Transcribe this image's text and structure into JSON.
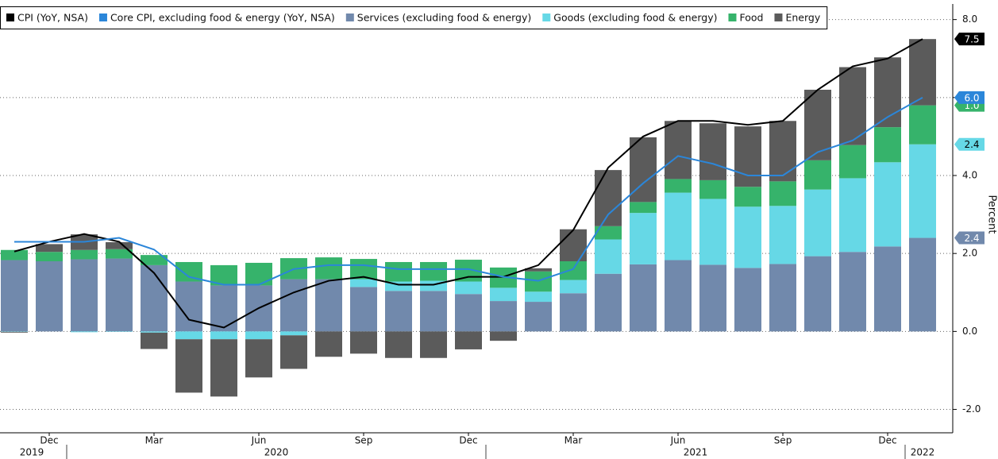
{
  "chart_data": {
    "type": "bar",
    "categories": [
      null,
      "Dec",
      null,
      null,
      "Mar",
      null,
      null,
      "Jun",
      null,
      null,
      "Sep",
      null,
      null,
      "Dec",
      null,
      null,
      "Mar",
      null,
      null,
      "Jun",
      null,
      null,
      "Sep",
      null,
      null,
      "Dec",
      null
    ],
    "year_groups": [
      {
        "label": "2019",
        "count": 2
      },
      {
        "label": "2020",
        "count": 12
      },
      {
        "label": "2021",
        "count": 12
      },
      {
        "label": "2022",
        "count": 1
      }
    ],
    "y_axis_label": "Percent",
    "ylim": [
      -2.6,
      8.4
    ],
    "yticks": [
      {
        "value": -2,
        "label": "-2.0"
      },
      {
        "value": 0,
        "label": "0.0"
      },
      {
        "value": 2,
        "label": "2.0"
      },
      {
        "value": 4,
        "label": "4.0"
      },
      {
        "value": 6,
        "label": "6.0"
      },
      {
        "value": 8,
        "label": "8.0"
      }
    ],
    "grid": true,
    "legend": "top-left",
    "series": [
      {
        "name": "CPI (YoY, NSA)",
        "type": "line",
        "color": "#000000",
        "end_label": true,
        "values": [
          2.05,
          2.3,
          2.5,
          2.3,
          1.5,
          0.3,
          0.1,
          0.6,
          1.0,
          1.3,
          1.4,
          1.2,
          1.2,
          1.4,
          1.4,
          1.7,
          2.6,
          4.2,
          5.0,
          5.4,
          5.4,
          5.3,
          5.4,
          6.2,
          6.8,
          7.0,
          7.5
        ]
      },
      {
        "name": "Core CPI, excluding food & energy (YoY, NSA)",
        "type": "line",
        "color": "#2b86d9",
        "end_label": true,
        "values": [
          2.3,
          2.3,
          2.3,
          2.4,
          2.1,
          1.4,
          1.2,
          1.2,
          1.6,
          1.7,
          1.7,
          1.6,
          1.6,
          1.6,
          1.4,
          1.3,
          1.6,
          3.0,
          3.8,
          4.5,
          4.3,
          4.0,
          4.0,
          4.6,
          4.9,
          5.5,
          6.0
        ],
        "value_labels": [
          null,
          null,
          null,
          null,
          null,
          null,
          null,
          null,
          null,
          null,
          null,
          null,
          null,
          null,
          null,
          null,
          null,
          null,
          null,
          null,
          null,
          null,
          null,
          null,
          null,
          null,
          "6.0"
        ]
      },
      {
        "name": "Services (excluding food & energy)",
        "type": "bar",
        "color": "#7189ac",
        "end_label": true,
        "values": [
          1.83,
          1.8,
          1.85,
          1.87,
          1.7,
          1.28,
          1.18,
          1.18,
          1.34,
          1.34,
          1.14,
          1.04,
          1.04,
          0.96,
          0.78,
          0.76,
          0.98,
          1.48,
          1.72,
          1.83,
          1.71,
          1.63,
          1.73,
          1.93,
          2.04,
          2.18,
          2.4
        ]
      },
      {
        "name": "Goods (excluding food & energy)",
        "type": "bar",
        "color": "#66d8e6",
        "end_label": true,
        "values": [
          -0.01,
          0,
          -0.02,
          -0.01,
          -0.03,
          -0.2,
          -0.2,
          -0.2,
          -0.1,
          0,
          0.2,
          0.24,
          0.26,
          0.32,
          0.34,
          0.26,
          0.34,
          0.88,
          1.32,
          1.73,
          1.69,
          1.57,
          1.49,
          1.71,
          1.89,
          2.16,
          2.4
        ]
      },
      {
        "name": "Food",
        "type": "bar",
        "color": "#36b36b",
        "end_label": true,
        "values": [
          0.26,
          0.24,
          0.24,
          0.24,
          0.26,
          0.5,
          0.52,
          0.58,
          0.54,
          0.56,
          0.52,
          0.5,
          0.48,
          0.56,
          0.52,
          0.52,
          0.48,
          0.34,
          0.28,
          0.35,
          0.48,
          0.51,
          0.63,
          0.75,
          0.85,
          0.9,
          1.0
        ],
        "value_labels": [
          null,
          null,
          null,
          null,
          null,
          null,
          null,
          null,
          null,
          null,
          null,
          null,
          null,
          null,
          null,
          null,
          null,
          null,
          null,
          null,
          null,
          null,
          null,
          null,
          null,
          null,
          "1.0"
        ]
      },
      {
        "name": "Energy",
        "type": "bar",
        "color": "#5b5b5b",
        "end_label": false,
        "values": [
          -0.02,
          0.2,
          0.4,
          0.18,
          -0.42,
          -1.37,
          -1.47,
          -0.98,
          -0.86,
          -0.65,
          -0.57,
          -0.68,
          -0.68,
          -0.46,
          -0.24,
          0.08,
          0.82,
          1.44,
          1.66,
          1.49,
          1.46,
          1.55,
          1.55,
          1.81,
          2.0,
          1.79,
          1.7
        ]
      }
    ]
  }
}
